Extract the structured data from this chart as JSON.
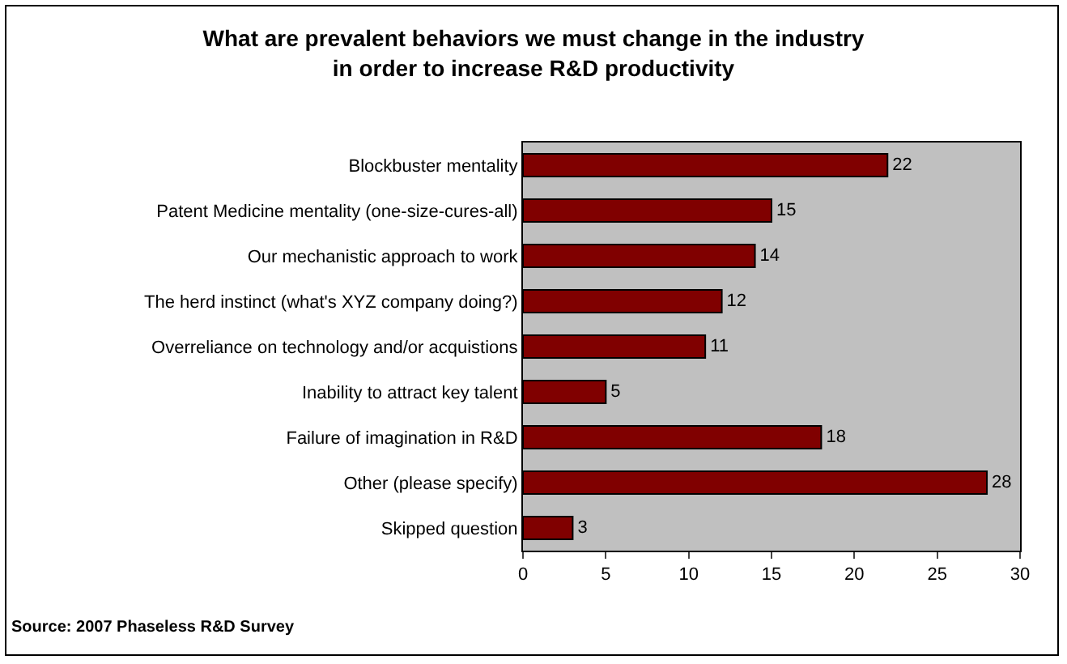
{
  "chart_data": {
    "type": "bar",
    "orientation": "horizontal",
    "title": "What are prevalent behaviors we must change in the industry\nin order to increase R&D productivity",
    "categories": [
      "Blockbuster mentality",
      "Patent Medicine mentality (one-size-cures-all)",
      "Our mechanistic approach to work",
      "The herd instinct (what's XYZ company doing?)",
      "Overreliance on technology and/or acquistions",
      "Inability to attract key talent",
      "Failure of imagination in R&D",
      "Other (please specify)",
      "Skipped question"
    ],
    "values": [
      22,
      15,
      14,
      12,
      11,
      5,
      18,
      28,
      3
    ],
    "color": "#800000",
    "xlim": [
      0,
      30
    ],
    "xticks": [
      0,
      5,
      10,
      15,
      20,
      25,
      30
    ],
    "grid": false,
    "legend": false,
    "data_labels": true,
    "annotations": [
      "Source: 2007 Phaseless R&D Survey"
    ]
  }
}
